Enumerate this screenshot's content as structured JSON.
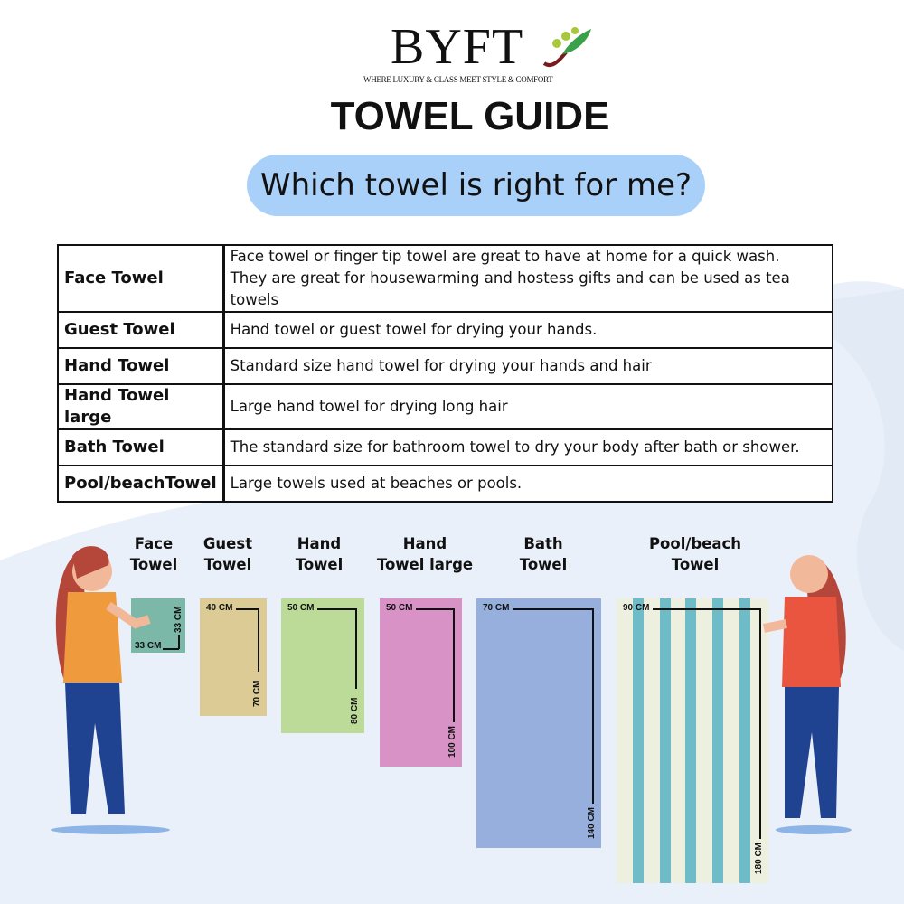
{
  "brand": {
    "name": "BYFT",
    "tagline": "WHERE LUXURY & CLASS MEET STYLE & COMFORT"
  },
  "title": "TOWEL GUIDE",
  "subtitle": "Which towel is right for me?",
  "table": [
    {
      "name": "Face Towel",
      "desc": [
        "Face towel or finger tip towel are great to have at home for a quick wash.",
        "They are great for housewarming and hostess gifts and can be used as tea towels"
      ]
    },
    {
      "name": "Guest Towel",
      "desc": [
        "Hand towel or guest towel for drying your hands."
      ]
    },
    {
      "name": "Hand Towel",
      "desc": [
        "Standard size hand towel for drying your hands and hair"
      ]
    },
    {
      "name": "Hand Towel large",
      "desc": [
        "Large hand towel for drying long hair"
      ]
    },
    {
      "name": "Bath Towel",
      "desc": [
        "The standard size for bathroom towel to dry your body after bath or shower."
      ]
    },
    {
      "name": "Pool/beachTowel",
      "desc": [
        "Large towels used at beaches or pools."
      ]
    }
  ],
  "towels": [
    {
      "l1": "Face",
      "l2": "Towel",
      "w": "33 CM",
      "h": "33 CM",
      "color": "#7bb8a8"
    },
    {
      "l1": "Guest",
      "l2": "Towel",
      "w": "40 CM",
      "h": "70 CM",
      "color": "#dccb94"
    },
    {
      "l1": "Hand",
      "l2": "Towel",
      "w": "50 CM",
      "h": "80 CM",
      "color": "#bddb98"
    },
    {
      "l1": "Hand",
      "l2": "Towel large",
      "w": "50 CM",
      "h": "100 CM",
      "color": "#d992c6"
    },
    {
      "l1": "Bath",
      "l2": "Towel",
      "w": "70 CM",
      "h": "140 CM",
      "color": "#96afdc"
    },
    {
      "l1": "Pool/beach",
      "l2": "Towel",
      "w": "90 CM",
      "h": "180 CM",
      "color": "#eef0df",
      "stripe": "#6fbcc9"
    }
  ]
}
